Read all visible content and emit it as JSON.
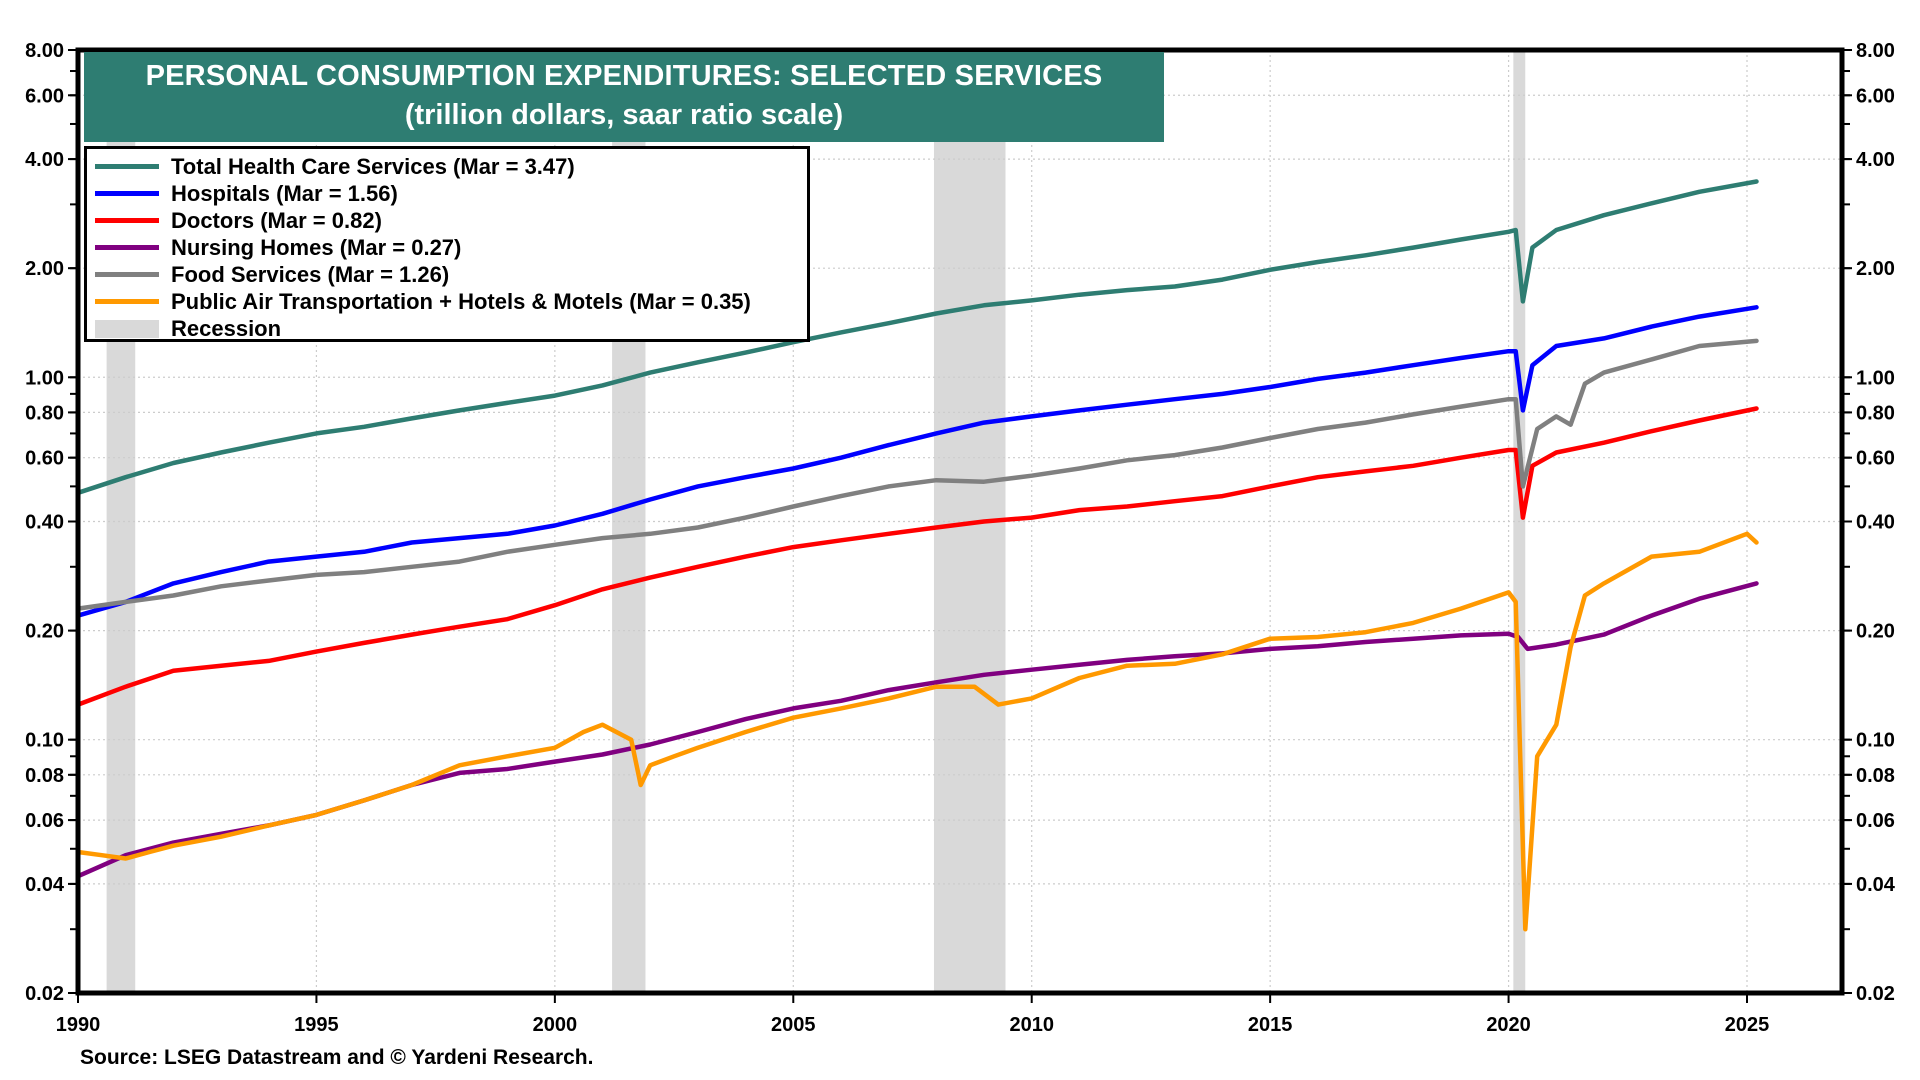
{
  "chart_data": {
    "type": "line",
    "title": "PERSONAL CONSUMPTION EXPENDITURES: SELECTED SERVICES",
    "subtitle": "(trillion dollars, saar ratio scale)",
    "xlabel": "",
    "ylabel": "",
    "yscale": "log",
    "xlim": [
      1990,
      2027
    ],
    "ylim": [
      0.02,
      8.0
    ],
    "x_ticks": [
      "1990",
      "1995",
      "2000",
      "2005",
      "2010",
      "2015",
      "2020",
      "2025"
    ],
    "y_ticks": [
      "8.00",
      "6.00",
      "4.00",
      "2.00",
      "1.00",
      "0.80",
      "0.60",
      "0.40",
      "0.20",
      "0.10",
      "0.08",
      "0.06",
      "0.04",
      "0.02"
    ],
    "grid": true,
    "legend_position": "top-left",
    "recessions": [
      {
        "start": 1990.6,
        "end": 1991.2
      },
      {
        "start": 2001.2,
        "end": 2001.9
      },
      {
        "start": 2007.95,
        "end": 2009.45
      },
      {
        "start": 2020.1,
        "end": 2020.35
      }
    ],
    "series": [
      {
        "name": "Total Health Care Services (Mar = 3.47)",
        "color": "#2e7d72",
        "x": [
          1990,
          1991,
          1992,
          1993,
          1994,
          1995,
          1996,
          1997,
          1998,
          1999,
          2000,
          2001,
          2002,
          2003,
          2004,
          2005,
          2006,
          2007,
          2008,
          2009,
          2010,
          2011,
          2012,
          2013,
          2014,
          2015,
          2016,
          2017,
          2018,
          2019,
          2020.0,
          2020.15,
          2020.3,
          2020.5,
          2021,
          2022,
          2023,
          2024,
          2025.2
        ],
        "y": [
          0.48,
          0.53,
          0.58,
          0.62,
          0.66,
          0.7,
          0.73,
          0.77,
          0.81,
          0.85,
          0.89,
          0.95,
          1.03,
          1.1,
          1.17,
          1.25,
          1.33,
          1.41,
          1.5,
          1.58,
          1.63,
          1.69,
          1.74,
          1.78,
          1.86,
          1.98,
          2.08,
          2.17,
          2.28,
          2.4,
          2.52,
          2.55,
          1.62,
          2.28,
          2.55,
          2.8,
          3.02,
          3.25,
          3.47
        ]
      },
      {
        "name": "Hospitals  (Mar = 1.56)",
        "color": "#0000ff",
        "x": [
          1990,
          1991,
          1992,
          1993,
          1994,
          1995,
          1996,
          1997,
          1998,
          1999,
          2000,
          2001,
          2002,
          2003,
          2004,
          2005,
          2006,
          2007,
          2008,
          2009,
          2010,
          2011,
          2012,
          2013,
          2014,
          2015,
          2016,
          2017,
          2018,
          2019,
          2020.0,
          2020.15,
          2020.3,
          2020.5,
          2021,
          2022,
          2023,
          2024,
          2025.2
        ],
        "y": [
          0.22,
          0.24,
          0.27,
          0.29,
          0.31,
          0.32,
          0.33,
          0.35,
          0.36,
          0.37,
          0.39,
          0.42,
          0.46,
          0.5,
          0.53,
          0.56,
          0.6,
          0.65,
          0.7,
          0.75,
          0.78,
          0.81,
          0.84,
          0.87,
          0.9,
          0.94,
          0.99,
          1.03,
          1.08,
          1.13,
          1.18,
          1.18,
          0.81,
          1.08,
          1.22,
          1.28,
          1.38,
          1.47,
          1.56
        ]
      },
      {
        "name": "Doctors  (Mar = 0.82)",
        "color": "#ff0000",
        "x": [
          1990,
          1991,
          1992,
          1993,
          1994,
          1995,
          1996,
          1997,
          1998,
          1999,
          2000,
          2001,
          2002,
          2003,
          2004,
          2005,
          2006,
          2007,
          2008,
          2009,
          2010,
          2011,
          2012,
          2013,
          2014,
          2015,
          2016,
          2017,
          2018,
          2019,
          2020.0,
          2020.15,
          2020.3,
          2020.5,
          2021,
          2022,
          2023,
          2024,
          2025.2
        ],
        "y": [
          0.125,
          0.14,
          0.155,
          0.16,
          0.165,
          0.175,
          0.185,
          0.195,
          0.205,
          0.215,
          0.235,
          0.26,
          0.28,
          0.3,
          0.32,
          0.34,
          0.355,
          0.37,
          0.385,
          0.4,
          0.41,
          0.43,
          0.44,
          0.455,
          0.47,
          0.5,
          0.53,
          0.55,
          0.57,
          0.6,
          0.63,
          0.63,
          0.41,
          0.57,
          0.62,
          0.66,
          0.71,
          0.76,
          0.82
        ]
      },
      {
        "name": "Nursing Homes (Mar = 0.27)",
        "color": "#800080",
        "x": [
          1990,
          1991,
          1992,
          1993,
          1994,
          1995,
          1996,
          1997,
          1998,
          1999,
          2000,
          2001,
          2002,
          2003,
          2004,
          2005,
          2006,
          2007,
          2008,
          2009,
          2010,
          2011,
          2012,
          2013,
          2014,
          2015,
          2016,
          2017,
          2018,
          2019,
          2020.0,
          2020.2,
          2020.4,
          2021,
          2022,
          2023,
          2024,
          2025.2
        ],
        "y": [
          0.042,
          0.048,
          0.052,
          0.055,
          0.058,
          0.062,
          0.068,
          0.075,
          0.081,
          0.083,
          0.087,
          0.091,
          0.097,
          0.105,
          0.114,
          0.122,
          0.128,
          0.137,
          0.144,
          0.151,
          0.156,
          0.161,
          0.166,
          0.17,
          0.173,
          0.178,
          0.181,
          0.186,
          0.19,
          0.194,
          0.196,
          0.192,
          0.178,
          0.183,
          0.195,
          0.22,
          0.245,
          0.27
        ]
      },
      {
        "name": "Food Services (Mar = 1.26)",
        "color": "#808080",
        "x": [
          1990,
          1991,
          1992,
          1993,
          1994,
          1995,
          1996,
          1997,
          1998,
          1999,
          2000,
          2001,
          2002,
          2003,
          2004,
          2005,
          2006,
          2007,
          2008,
          2009,
          2010,
          2011,
          2012,
          2013,
          2014,
          2015,
          2016,
          2017,
          2018,
          2019,
          2020.0,
          2020.15,
          2020.3,
          2020.6,
          2021.0,
          2021.3,
          2021.6,
          2022,
          2023,
          2024,
          2025.2
        ],
        "y": [
          0.23,
          0.24,
          0.25,
          0.265,
          0.275,
          0.285,
          0.29,
          0.3,
          0.31,
          0.33,
          0.345,
          0.36,
          0.37,
          0.385,
          0.41,
          0.44,
          0.47,
          0.5,
          0.52,
          0.515,
          0.535,
          0.56,
          0.59,
          0.61,
          0.64,
          0.68,
          0.72,
          0.75,
          0.79,
          0.83,
          0.87,
          0.87,
          0.5,
          0.72,
          0.78,
          0.74,
          0.96,
          1.03,
          1.12,
          1.22,
          1.26
        ]
      },
      {
        "name": "Public Air Transportation + Hotels & Motels  (Mar = 0.35)",
        "color": "#ff9900",
        "x": [
          1990,
          1990.5,
          1991,
          1991.5,
          1992,
          1993,
          1994,
          1995,
          1996,
          1997,
          1998,
          1999,
          2000,
          2000.6,
          2001.0,
          2001.6,
          2001.8,
          2002,
          2002.5,
          2003,
          2004,
          2005,
          2006,
          2007,
          2008,
          2008.8,
          2009.3,
          2010,
          2011,
          2012,
          2013,
          2014,
          2015,
          2016,
          2017,
          2018,
          2019,
          2020.0,
          2020.15,
          2020.35,
          2020.6,
          2021.0,
          2021.3,
          2021.6,
          2022,
          2023,
          2024,
          2025.0,
          2025.2
        ],
        "y": [
          0.049,
          0.048,
          0.047,
          0.049,
          0.051,
          0.054,
          0.058,
          0.062,
          0.068,
          0.075,
          0.085,
          0.09,
          0.095,
          0.105,
          0.11,
          0.1,
          0.075,
          0.085,
          0.09,
          0.095,
          0.105,
          0.115,
          0.122,
          0.13,
          0.14,
          0.14,
          0.125,
          0.13,
          0.148,
          0.16,
          0.162,
          0.172,
          0.19,
          0.192,
          0.198,
          0.21,
          0.23,
          0.255,
          0.24,
          0.03,
          0.09,
          0.11,
          0.18,
          0.25,
          0.27,
          0.32,
          0.33,
          0.37,
          0.35
        ]
      }
    ]
  },
  "legend": {
    "items": [
      {
        "label": "Total Health Care Services (Mar = 3.47)",
        "color": "#2e7d72"
      },
      {
        "label": "Hospitals  (Mar = 1.56)",
        "color": "#0000ff"
      },
      {
        "label": "Doctors  (Mar = 0.82)",
        "color": "#ff0000"
      },
      {
        "label": "Nursing Homes (Mar = 0.27)",
        "color": "#800080"
      },
      {
        "label": "Food Services (Mar = 1.26)",
        "color": "#808080"
      },
      {
        "label": "Public Air Transportation + Hotels & Motels  (Mar = 0.35)",
        "color": "#ff9900"
      },
      {
        "label": "Recession",
        "color": "#d9d9d9"
      }
    ]
  },
  "header": {
    "title": "PERSONAL CONSUMPTION EXPENDITURES: SELECTED SERVICES",
    "subtitle": "(trillion dollars, saar ratio scale)",
    "background": "#2e7d72"
  },
  "footer": {
    "source": "Source: LSEG Datastream and © Yardeni Research."
  }
}
